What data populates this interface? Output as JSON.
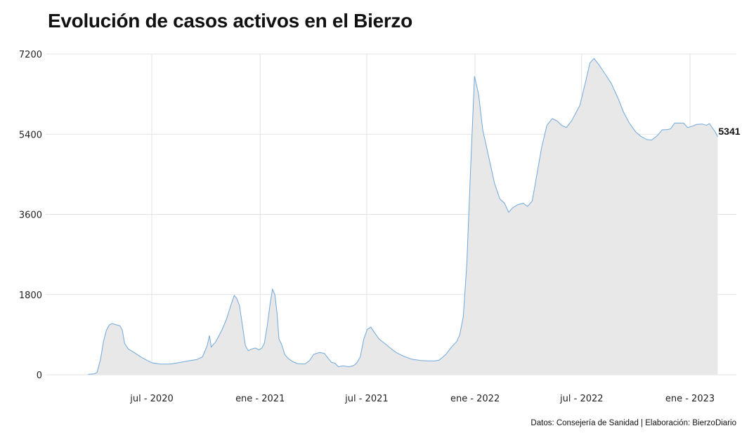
{
  "title": "Evolución de casos activos en el Bierzo",
  "caption": "Datos: Consejería de Sanidad | Elaboración: BierzoDiario",
  "colors": {
    "line": "#6fa8dc",
    "area": "#e8e8e8",
    "grid": "#e3e3e3"
  },
  "chart_data": {
    "type": "area",
    "title": "Evolución de casos activos en el Bierzo",
    "xlabel": "",
    "ylabel": "",
    "ylim": [
      0,
      7200
    ],
    "yticks": [
      0,
      1800,
      3600,
      5400,
      7200
    ],
    "xlim": [
      "2020-03-01",
      "2023-03-01"
    ],
    "xticks": [
      {
        "date": "2020-07-01",
        "label": "jul - 2020"
      },
      {
        "date": "2021-01-01",
        "label": "ene - 2021"
      },
      {
        "date": "2021-07-01",
        "label": "jul - 2021"
      },
      {
        "date": "2022-01-01",
        "label": "ene - 2022"
      },
      {
        "date": "2022-07-01",
        "label": "jul - 2022"
      },
      {
        "date": "2023-01-01",
        "label": "ene - 2023"
      }
    ],
    "grid": true,
    "end_label": "5341",
    "series": [
      {
        "points": [
          [
            "2020-03-15",
            10
          ],
          [
            "2020-03-25",
            20
          ],
          [
            "2020-03-30",
            50
          ],
          [
            "2020-04-05",
            350
          ],
          [
            "2020-04-10",
            750
          ],
          [
            "2020-04-15",
            1000
          ],
          [
            "2020-04-20",
            1120
          ],
          [
            "2020-04-25",
            1150
          ],
          [
            "2020-05-02",
            1120
          ],
          [
            "2020-05-08",
            1100
          ],
          [
            "2020-05-12",
            1000
          ],
          [
            "2020-05-16",
            700
          ],
          [
            "2020-05-22",
            580
          ],
          [
            "2020-06-01",
            500
          ],
          [
            "2020-06-15",
            380
          ],
          [
            "2020-07-01",
            270
          ],
          [
            "2020-07-15",
            240
          ],
          [
            "2020-08-01",
            240
          ],
          [
            "2020-08-15",
            270
          ],
          [
            "2020-09-01",
            310
          ],
          [
            "2020-09-15",
            340
          ],
          [
            "2020-09-25",
            400
          ],
          [
            "2020-10-03",
            650
          ],
          [
            "2020-10-07",
            880
          ],
          [
            "2020-10-10",
            620
          ],
          [
            "2020-10-18",
            750
          ],
          [
            "2020-10-28",
            1000
          ],
          [
            "2020-11-05",
            1250
          ],
          [
            "2020-11-12",
            1550
          ],
          [
            "2020-11-18",
            1780
          ],
          [
            "2020-11-22",
            1720
          ],
          [
            "2020-11-27",
            1550
          ],
          [
            "2020-12-02",
            1100
          ],
          [
            "2020-12-07",
            650
          ],
          [
            "2020-12-12",
            540
          ],
          [
            "2020-12-18",
            580
          ],
          [
            "2020-12-24",
            600
          ],
          [
            "2020-12-30",
            560
          ],
          [
            "2021-01-04",
            600
          ],
          [
            "2021-01-08",
            700
          ],
          [
            "2021-01-13",
            1100
          ],
          [
            "2021-01-18",
            1600
          ],
          [
            "2021-01-22",
            1920
          ],
          [
            "2021-01-26",
            1800
          ],
          [
            "2021-01-30",
            1350
          ],
          [
            "2021-02-02",
            800
          ],
          [
            "2021-02-06",
            700
          ],
          [
            "2021-02-12",
            450
          ],
          [
            "2021-02-18",
            360
          ],
          [
            "2021-02-25",
            300
          ],
          [
            "2021-03-05",
            250
          ],
          [
            "2021-03-18",
            240
          ],
          [
            "2021-03-26",
            320
          ],
          [
            "2021-04-02",
            460
          ],
          [
            "2021-04-12",
            500
          ],
          [
            "2021-04-20",
            480
          ],
          [
            "2021-04-26",
            380
          ],
          [
            "2021-05-02",
            280
          ],
          [
            "2021-05-08",
            260
          ],
          [
            "2021-05-14",
            180
          ],
          [
            "2021-05-22",
            200
          ],
          [
            "2021-06-01",
            180
          ],
          [
            "2021-06-08",
            200
          ],
          [
            "2021-06-14",
            260
          ],
          [
            "2021-06-20",
            400
          ],
          [
            "2021-06-26",
            800
          ],
          [
            "2021-07-02",
            1020
          ],
          [
            "2021-07-08",
            1070
          ],
          [
            "2021-07-14",
            950
          ],
          [
            "2021-07-22",
            800
          ],
          [
            "2021-08-01",
            700
          ],
          [
            "2021-08-10",
            600
          ],
          [
            "2021-08-20",
            500
          ],
          [
            "2021-09-01",
            420
          ],
          [
            "2021-09-15",
            350
          ],
          [
            "2021-10-01",
            320
          ],
          [
            "2021-10-15",
            310
          ],
          [
            "2021-10-25",
            310
          ],
          [
            "2021-11-01",
            330
          ],
          [
            "2021-11-12",
            450
          ],
          [
            "2021-11-22",
            620
          ],
          [
            "2021-12-01",
            750
          ],
          [
            "2021-12-06",
            900
          ],
          [
            "2021-12-12",
            1300
          ],
          [
            "2021-12-18",
            2500
          ],
          [
            "2021-12-24",
            4500
          ],
          [
            "2021-12-31",
            6700
          ],
          [
            "2022-01-07",
            6300
          ],
          [
            "2022-01-14",
            5500
          ],
          [
            "2022-01-24",
            4900
          ],
          [
            "2022-02-03",
            4300
          ],
          [
            "2022-02-12",
            3950
          ],
          [
            "2022-02-20",
            3850
          ],
          [
            "2022-02-27",
            3650
          ],
          [
            "2022-03-06",
            3750
          ],
          [
            "2022-03-15",
            3820
          ],
          [
            "2022-03-24",
            3850
          ],
          [
            "2022-03-31",
            3780
          ],
          [
            "2022-04-08",
            3900
          ],
          [
            "2022-04-16",
            4500
          ],
          [
            "2022-04-24",
            5100
          ],
          [
            "2022-05-03",
            5600
          ],
          [
            "2022-05-12",
            5750
          ],
          [
            "2022-05-20",
            5700
          ],
          [
            "2022-05-28",
            5600
          ],
          [
            "2022-06-05",
            5550
          ],
          [
            "2022-06-14",
            5700
          ],
          [
            "2022-06-28",
            6050
          ],
          [
            "2022-07-08",
            6600
          ],
          [
            "2022-07-15",
            7000
          ],
          [
            "2022-07-22",
            7100
          ],
          [
            "2022-07-31",
            6950
          ],
          [
            "2022-08-10",
            6750
          ],
          [
            "2022-08-20",
            6550
          ],
          [
            "2022-09-01",
            6200
          ],
          [
            "2022-09-10",
            5900
          ],
          [
            "2022-09-20",
            5650
          ],
          [
            "2022-10-01",
            5450
          ],
          [
            "2022-10-10",
            5350
          ],
          [
            "2022-10-20",
            5280
          ],
          [
            "2022-10-28",
            5270
          ],
          [
            "2022-11-05",
            5350
          ],
          [
            "2022-11-15",
            5500
          ],
          [
            "2022-11-22",
            5500
          ],
          [
            "2022-11-29",
            5520
          ],
          [
            "2022-12-06",
            5650
          ],
          [
            "2022-12-14",
            5650
          ],
          [
            "2022-12-21",
            5650
          ],
          [
            "2022-12-28",
            5550
          ],
          [
            "2023-01-05",
            5580
          ],
          [
            "2023-01-12",
            5620
          ],
          [
            "2023-01-22",
            5630
          ],
          [
            "2023-01-29",
            5600
          ],
          [
            "2023-02-03",
            5640
          ],
          [
            "2023-02-07",
            5560
          ],
          [
            "2023-02-13",
            5450
          ],
          [
            "2023-02-17",
            5341
          ]
        ]
      }
    ]
  }
}
